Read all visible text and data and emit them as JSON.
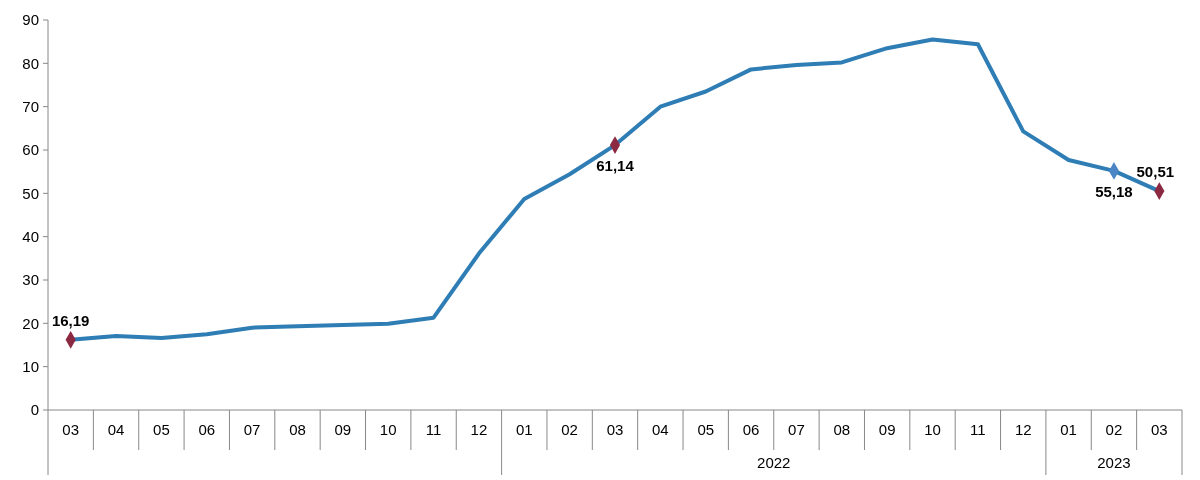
{
  "chart_data": {
    "type": "line",
    "categories": [
      "03",
      "04",
      "05",
      "06",
      "07",
      "08",
      "09",
      "10",
      "11",
      "12",
      "01",
      "02",
      "03",
      "04",
      "05",
      "06",
      "07",
      "08",
      "09",
      "10",
      "11",
      "12",
      "01",
      "02",
      "03"
    ],
    "series": [
      {
        "color": "#2e7db5",
        "marker": "none",
        "values": [
          16.19,
          17.1,
          16.6,
          17.5,
          19.0,
          19.3,
          19.6,
          19.9,
          21.3,
          36.1,
          48.7,
          54.4,
          61.14,
          70.0,
          73.5,
          78.6,
          79.6,
          80.2,
          83.5,
          85.5,
          84.4,
          64.3,
          57.7,
          55.18,
          50.51
        ]
      },
      {
        "type": "scatter",
        "marker": "diamond",
        "values": [
          16.19,
          null,
          null,
          null,
          null,
          null,
          null,
          null,
          null,
          null,
          null,
          null,
          61.14,
          null,
          null,
          null,
          null,
          null,
          null,
          null,
          null,
          null,
          null,
          55.18,
          50.51
        ],
        "value_labels": [
          "16,19",
          null,
          null,
          null,
          null,
          null,
          null,
          null,
          null,
          null,
          null,
          null,
          "61,14",
          null,
          null,
          null,
          null,
          null,
          null,
          null,
          null,
          null,
          null,
          "55,18",
          "50,51"
        ],
        "colors": [
          "#8b2942",
          null,
          null,
          null,
          null,
          null,
          null,
          null,
          null,
          null,
          null,
          null,
          "#8b2942",
          null,
          null,
          null,
          null,
          null,
          null,
          null,
          null,
          null,
          null,
          "#4a86c5",
          "#8b2942"
        ]
      }
    ],
    "ylim": [
      0,
      90
    ],
    "yticks": [
      0,
      10,
      20,
      30,
      40,
      50,
      60,
      70,
      80,
      90
    ],
    "grid": false,
    "line_style": "solid",
    "annotations": [
      "2022",
      "2023"
    ]
  }
}
